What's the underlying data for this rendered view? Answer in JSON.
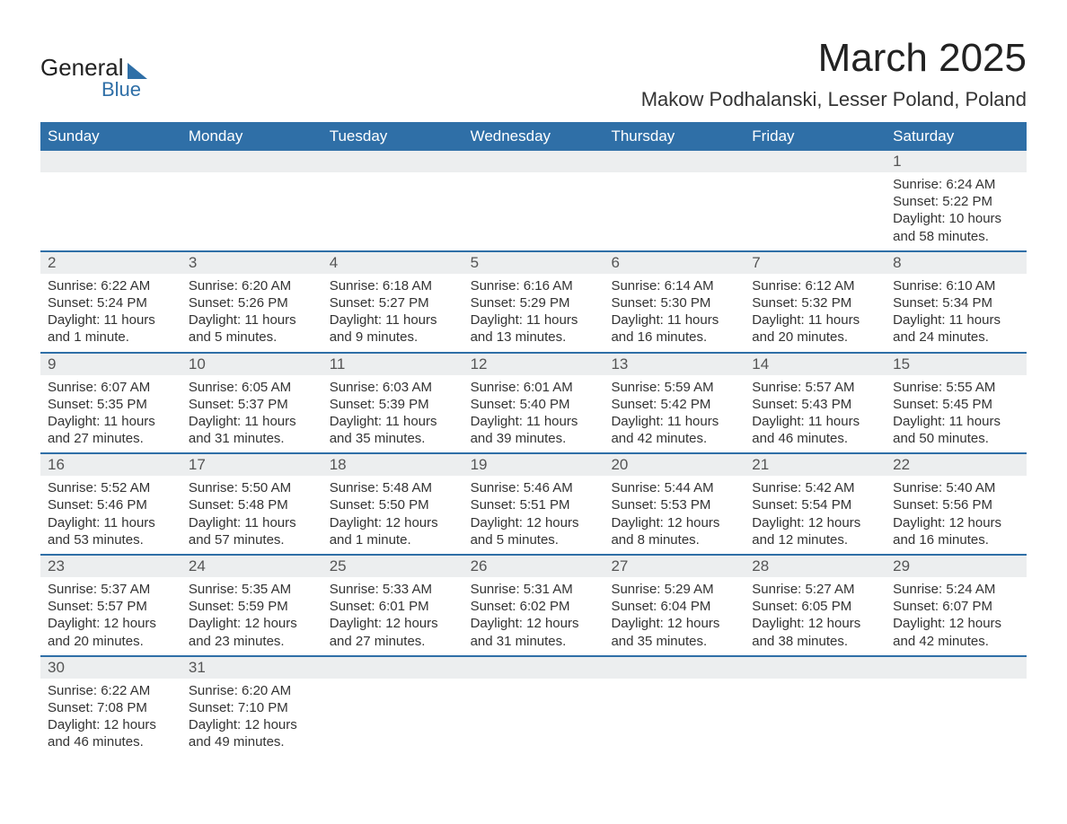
{
  "logo": {
    "line1": "General",
    "line2": "Blue"
  },
  "title": "March 2025",
  "location": "Makow Podhalanski, Lesser Poland, Poland",
  "colors": {
    "header_bg": "#2f6fa7",
    "header_text": "#ffffff",
    "daynum_bg": "#eceeef",
    "border": "#2f6fa7",
    "text": "#333333",
    "background": "#ffffff"
  },
  "dayNames": [
    "Sunday",
    "Monday",
    "Tuesday",
    "Wednesday",
    "Thursday",
    "Friday",
    "Saturday"
  ],
  "weeks": [
    [
      null,
      null,
      null,
      null,
      null,
      null,
      {
        "n": "1",
        "sunrise": "Sunrise: 6:24 AM",
        "sunset": "Sunset: 5:22 PM",
        "daylight": "Daylight: 10 hours and 58 minutes."
      }
    ],
    [
      {
        "n": "2",
        "sunrise": "Sunrise: 6:22 AM",
        "sunset": "Sunset: 5:24 PM",
        "daylight": "Daylight: 11 hours and 1 minute."
      },
      {
        "n": "3",
        "sunrise": "Sunrise: 6:20 AM",
        "sunset": "Sunset: 5:26 PM",
        "daylight": "Daylight: 11 hours and 5 minutes."
      },
      {
        "n": "4",
        "sunrise": "Sunrise: 6:18 AM",
        "sunset": "Sunset: 5:27 PM",
        "daylight": "Daylight: 11 hours and 9 minutes."
      },
      {
        "n": "5",
        "sunrise": "Sunrise: 6:16 AM",
        "sunset": "Sunset: 5:29 PM",
        "daylight": "Daylight: 11 hours and 13 minutes."
      },
      {
        "n": "6",
        "sunrise": "Sunrise: 6:14 AM",
        "sunset": "Sunset: 5:30 PM",
        "daylight": "Daylight: 11 hours and 16 minutes."
      },
      {
        "n": "7",
        "sunrise": "Sunrise: 6:12 AM",
        "sunset": "Sunset: 5:32 PM",
        "daylight": "Daylight: 11 hours and 20 minutes."
      },
      {
        "n": "8",
        "sunrise": "Sunrise: 6:10 AM",
        "sunset": "Sunset: 5:34 PM",
        "daylight": "Daylight: 11 hours and 24 minutes."
      }
    ],
    [
      {
        "n": "9",
        "sunrise": "Sunrise: 6:07 AM",
        "sunset": "Sunset: 5:35 PM",
        "daylight": "Daylight: 11 hours and 27 minutes."
      },
      {
        "n": "10",
        "sunrise": "Sunrise: 6:05 AM",
        "sunset": "Sunset: 5:37 PM",
        "daylight": "Daylight: 11 hours and 31 minutes."
      },
      {
        "n": "11",
        "sunrise": "Sunrise: 6:03 AM",
        "sunset": "Sunset: 5:39 PM",
        "daylight": "Daylight: 11 hours and 35 minutes."
      },
      {
        "n": "12",
        "sunrise": "Sunrise: 6:01 AM",
        "sunset": "Sunset: 5:40 PM",
        "daylight": "Daylight: 11 hours and 39 minutes."
      },
      {
        "n": "13",
        "sunrise": "Sunrise: 5:59 AM",
        "sunset": "Sunset: 5:42 PM",
        "daylight": "Daylight: 11 hours and 42 minutes."
      },
      {
        "n": "14",
        "sunrise": "Sunrise: 5:57 AM",
        "sunset": "Sunset: 5:43 PM",
        "daylight": "Daylight: 11 hours and 46 minutes."
      },
      {
        "n": "15",
        "sunrise": "Sunrise: 5:55 AM",
        "sunset": "Sunset: 5:45 PM",
        "daylight": "Daylight: 11 hours and 50 minutes."
      }
    ],
    [
      {
        "n": "16",
        "sunrise": "Sunrise: 5:52 AM",
        "sunset": "Sunset: 5:46 PM",
        "daylight": "Daylight: 11 hours and 53 minutes."
      },
      {
        "n": "17",
        "sunrise": "Sunrise: 5:50 AM",
        "sunset": "Sunset: 5:48 PM",
        "daylight": "Daylight: 11 hours and 57 minutes."
      },
      {
        "n": "18",
        "sunrise": "Sunrise: 5:48 AM",
        "sunset": "Sunset: 5:50 PM",
        "daylight": "Daylight: 12 hours and 1 minute."
      },
      {
        "n": "19",
        "sunrise": "Sunrise: 5:46 AM",
        "sunset": "Sunset: 5:51 PM",
        "daylight": "Daylight: 12 hours and 5 minutes."
      },
      {
        "n": "20",
        "sunrise": "Sunrise: 5:44 AM",
        "sunset": "Sunset: 5:53 PM",
        "daylight": "Daylight: 12 hours and 8 minutes."
      },
      {
        "n": "21",
        "sunrise": "Sunrise: 5:42 AM",
        "sunset": "Sunset: 5:54 PM",
        "daylight": "Daylight: 12 hours and 12 minutes."
      },
      {
        "n": "22",
        "sunrise": "Sunrise: 5:40 AM",
        "sunset": "Sunset: 5:56 PM",
        "daylight": "Daylight: 12 hours and 16 minutes."
      }
    ],
    [
      {
        "n": "23",
        "sunrise": "Sunrise: 5:37 AM",
        "sunset": "Sunset: 5:57 PM",
        "daylight": "Daylight: 12 hours and 20 minutes."
      },
      {
        "n": "24",
        "sunrise": "Sunrise: 5:35 AM",
        "sunset": "Sunset: 5:59 PM",
        "daylight": "Daylight: 12 hours and 23 minutes."
      },
      {
        "n": "25",
        "sunrise": "Sunrise: 5:33 AM",
        "sunset": "Sunset: 6:01 PM",
        "daylight": "Daylight: 12 hours and 27 minutes."
      },
      {
        "n": "26",
        "sunrise": "Sunrise: 5:31 AM",
        "sunset": "Sunset: 6:02 PM",
        "daylight": "Daylight: 12 hours and 31 minutes."
      },
      {
        "n": "27",
        "sunrise": "Sunrise: 5:29 AM",
        "sunset": "Sunset: 6:04 PM",
        "daylight": "Daylight: 12 hours and 35 minutes."
      },
      {
        "n": "28",
        "sunrise": "Sunrise: 5:27 AM",
        "sunset": "Sunset: 6:05 PM",
        "daylight": "Daylight: 12 hours and 38 minutes."
      },
      {
        "n": "29",
        "sunrise": "Sunrise: 5:24 AM",
        "sunset": "Sunset: 6:07 PM",
        "daylight": "Daylight: 12 hours and 42 minutes."
      }
    ],
    [
      {
        "n": "30",
        "sunrise": "Sunrise: 6:22 AM",
        "sunset": "Sunset: 7:08 PM",
        "daylight": "Daylight: 12 hours and 46 minutes."
      },
      {
        "n": "31",
        "sunrise": "Sunrise: 6:20 AM",
        "sunset": "Sunset: 7:10 PM",
        "daylight": "Daylight: 12 hours and 49 minutes."
      },
      null,
      null,
      null,
      null,
      null
    ]
  ]
}
